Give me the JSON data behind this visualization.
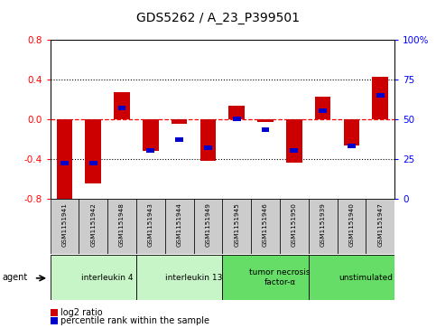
{
  "title": "GDS5262 / A_23_P399501",
  "samples": [
    "GSM1151941",
    "GSM1151942",
    "GSM1151948",
    "GSM1151943",
    "GSM1151944",
    "GSM1151949",
    "GSM1151945",
    "GSM1151946",
    "GSM1151950",
    "GSM1151939",
    "GSM1151940",
    "GSM1151947"
  ],
  "log2_ratio": [
    -0.82,
    -0.65,
    0.27,
    -0.32,
    -0.05,
    -0.42,
    0.13,
    -0.03,
    -0.44,
    0.22,
    -0.27,
    0.42
  ],
  "percentile": [
    22,
    22,
    57,
    30,
    37,
    32,
    50,
    43,
    30,
    55,
    33,
    65
  ],
  "agents": [
    {
      "label": "interleukin 4",
      "start": 0,
      "end": 3,
      "color": "#c8f5c8"
    },
    {
      "label": "interleukin 13",
      "start": 3,
      "end": 6,
      "color": "#c8f5c8"
    },
    {
      "label": "tumor necrosis\nfactor-α",
      "start": 6,
      "end": 9,
      "color": "#66dd66"
    },
    {
      "label": "unstimulated",
      "start": 9,
      "end": 12,
      "color": "#66dd66"
    }
  ],
  "ylim_left": [
    -0.8,
    0.8
  ],
  "ylim_right": [
    0,
    100
  ],
  "yticks_left": [
    -0.8,
    -0.4,
    0.0,
    0.4,
    0.8
  ],
  "yticks_right": [
    0,
    25,
    50,
    75,
    100
  ],
  "bar_width": 0.55,
  "bar_color": "#cc0000",
  "blue_color": "#0000cc",
  "sample_bg": "#cccccc",
  "title_fontsize": 10
}
